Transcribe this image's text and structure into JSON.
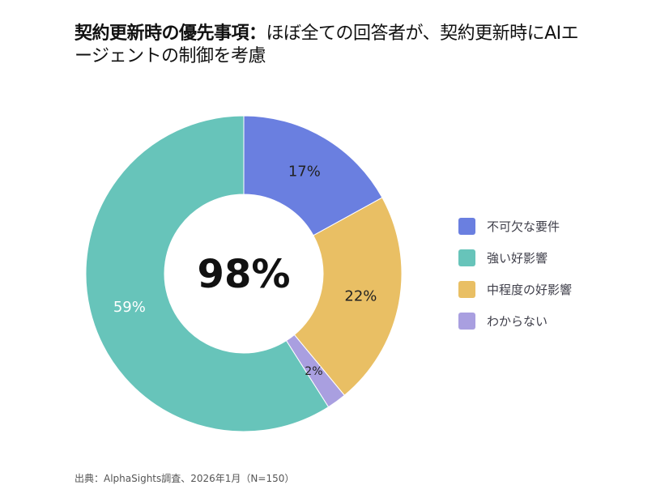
{
  "title": {
    "bold": "契約更新時の優先事項：",
    "rest": "ほぼ全ての回答者が、契約更新時にAIエージェントの制御を考慮"
  },
  "chart_data": {
    "type": "pie",
    "variant": "donut",
    "center_label": "98%",
    "categories": [
      "不可欠な要件",
      "強い好影響",
      "中程度の好影響",
      "わからない"
    ],
    "values": [
      17,
      59,
      22,
      2
    ],
    "data_labels": [
      "17%",
      "59%",
      "22%",
      "2%"
    ],
    "draw_order": [
      0,
      2,
      3,
      1
    ],
    "colors": [
      "#6A7FE0",
      "#67C4BA",
      "#E9BF64",
      "#A99FE0"
    ],
    "label_colors": [
      "#222222",
      "#ffffff",
      "#222222",
      "#222222"
    ],
    "legend_position": "right"
  },
  "source": "出典：AlphaSights調査、2026年1月（N=150）"
}
